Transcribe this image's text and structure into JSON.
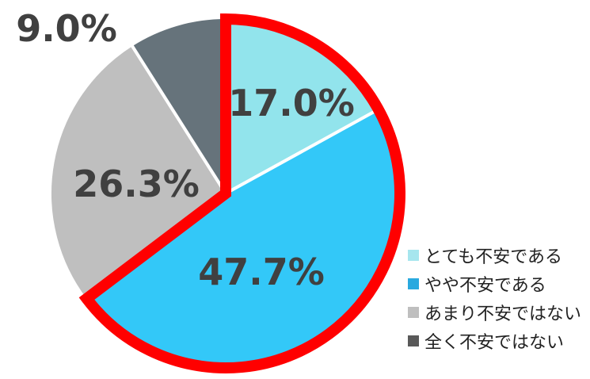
{
  "chart_data": {
    "type": "pie",
    "title": "",
    "categories": [
      "とても不安である",
      "やや不安である",
      "あまり不安ではない",
      "全く不安ではない"
    ],
    "values": [
      17.0,
      47.7,
      26.3,
      9.0
    ],
    "labels": [
      "17.0%",
      "47.7%",
      "26.3%",
      "9.0%"
    ],
    "colors": [
      "#92E4EC",
      "#33C8F8",
      "#BFBFBF",
      "#66737B"
    ],
    "legend_colors": [
      "#A6E6EE",
      "#29A9DF",
      "#BFBFBF",
      "#595959"
    ],
    "highlight": {
      "slices": [
        "とても不安である",
        "やや不安である"
      ],
      "color": "#FF0000"
    },
    "start_angle_deg": 0,
    "direction": "clockwise",
    "legend_position": "bottom-right"
  }
}
